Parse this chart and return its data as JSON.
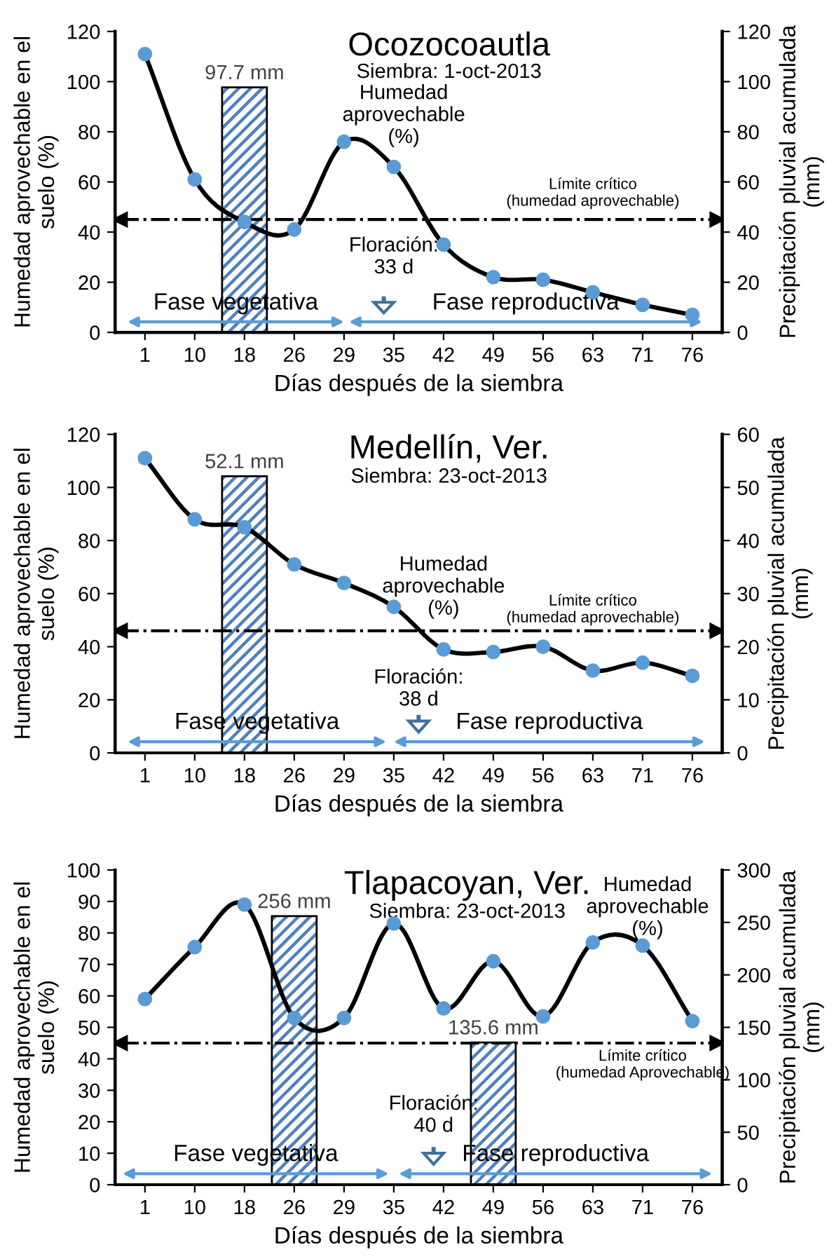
{
  "chart_data": [
    {
      "type": "line",
      "title": "Ocozocoautla",
      "subtitle": "Siembra: 1-oct-2013",
      "xlabel": "Días después de la siembra",
      "ylabel": "Humedad aprovechable en el\nsuelo (%)",
      "y2label": "Precipitación pluvial acumulada\n(mm)",
      "categories": [
        "1",
        "10",
        "18",
        "26",
        "29",
        "35",
        "42",
        "49",
        "56",
        "63",
        "71",
        "76"
      ],
      "series": [
        {
          "color": "#5b9bd5",
          "marker": "circle",
          "values": [
            111,
            61,
            44,
            41,
            76,
            66,
            35,
            22,
            21,
            16,
            11,
            7
          ]
        },
        {
          "type": "bar",
          "axis": "y2",
          "color": "#4f81bd",
          "values": [
            null,
            null,
            97.7,
            null,
            null,
            null,
            null,
            null,
            null,
            null,
            null,
            null
          ],
          "value_labels": [
            null,
            null,
            "97.7 mm",
            null,
            null,
            null,
            null,
            null,
            null,
            null,
            null,
            null
          ]
        }
      ],
      "ylim": [
        0,
        120
      ],
      "yticks": [
        0,
        20,
        40,
        60,
        80,
        100,
        120
      ],
      "y2lim": [
        0,
        120
      ],
      "y2ticks": [
        0,
        20,
        40,
        60,
        80,
        100,
        120
      ],
      "ref_lines": [
        {
          "axis": "y",
          "value": 45,
          "label": "Límite crítico\n(humedad aprovechable)"
        }
      ],
      "annotations": [
        "Humedad\naprovechable\n(%)",
        "Floración:\n33 d",
        "Fase vegetativa",
        "Fase reproductiva"
      ]
    },
    {
      "type": "line",
      "title": "Medellín, Ver.",
      "subtitle": "Siembra: 23-oct-2013",
      "xlabel": "Días después de la siembra",
      "ylabel": "Humedad aprovechable en el\nsuelo (%)",
      "y2label": "Precipitación pluvial acumulada\n(mm)",
      "categories": [
        "1",
        "10",
        "18",
        "26",
        "29",
        "35",
        "42",
        "49",
        "56",
        "63",
        "71",
        "76"
      ],
      "series": [
        {
          "color": "#5b9bd5",
          "marker": "circle",
          "values": [
            111,
            88,
            85,
            71,
            64,
            55,
            39,
            38,
            40,
            31,
            34,
            29
          ]
        },
        {
          "type": "bar",
          "axis": "y2",
          "color": "#4f81bd",
          "values": [
            null,
            null,
            52.1,
            null,
            null,
            null,
            null,
            null,
            null,
            null,
            null,
            null
          ],
          "value_labels": [
            null,
            null,
            "52.1 mm",
            null,
            null,
            null,
            null,
            null,
            null,
            null,
            null,
            null
          ]
        }
      ],
      "ylim": [
        0,
        120
      ],
      "yticks": [
        0,
        20,
        40,
        60,
        80,
        100,
        120
      ],
      "y2lim": [
        0,
        60
      ],
      "y2ticks": [
        0,
        10,
        20,
        30,
        40,
        50,
        60
      ],
      "ref_lines": [
        {
          "axis": "y",
          "value": 46,
          "label": "Límite crítico\n(humedad aprovechable)"
        }
      ],
      "annotations": [
        "Humedad\naprovechable\n(%)",
        "Floración:\n38 d",
        "Fase vegetativa",
        "Fase reproductiva"
      ]
    },
    {
      "type": "line",
      "title": "Tlapacoyan, Ver.",
      "subtitle": "Siembra: 23-oct-2013",
      "xlabel": "Días después de la siembra",
      "ylabel": "Humedad aprovechable en el\nsuelo (%)",
      "y2label": "Precipitación pluvial acumulada\n(mm)",
      "categories": [
        "1",
        "10",
        "18",
        "26",
        "29",
        "35",
        "42",
        "49",
        "56",
        "63",
        "71",
        "76"
      ],
      "series": [
        {
          "color": "#5b9bd5",
          "marker": "circle",
          "values": [
            59,
            75.5,
            89,
            53,
            53,
            83,
            56,
            71,
            53.5,
            77,
            76,
            52
          ]
        },
        {
          "type": "bar",
          "axis": "y2",
          "color": "#4f81bd",
          "values": [
            null,
            null,
            null,
            256,
            null,
            null,
            null,
            135.6,
            null,
            null,
            null,
            null
          ],
          "value_labels": [
            null,
            null,
            null,
            "256 mm",
            null,
            null,
            null,
            "135.6 mm",
            null,
            null,
            null,
            null
          ]
        }
      ],
      "ylim": [
        0,
        100
      ],
      "yticks": [
        0,
        10,
        20,
        30,
        40,
        50,
        60,
        70,
        80,
        90,
        100
      ],
      "y2lim": [
        0,
        300
      ],
      "y2ticks": [
        0,
        50,
        100,
        150,
        200,
        250,
        300
      ],
      "ref_lines": [
        {
          "axis": "y",
          "value": 45,
          "label": "Límite crítico\n(humedad Aprovechable)"
        }
      ],
      "annotations": [
        "Humedad\naprovechable\n(%)",
        "Floración:\n40 d",
        "Fase vegetativa",
        "Fase reproductiva"
      ]
    }
  ]
}
